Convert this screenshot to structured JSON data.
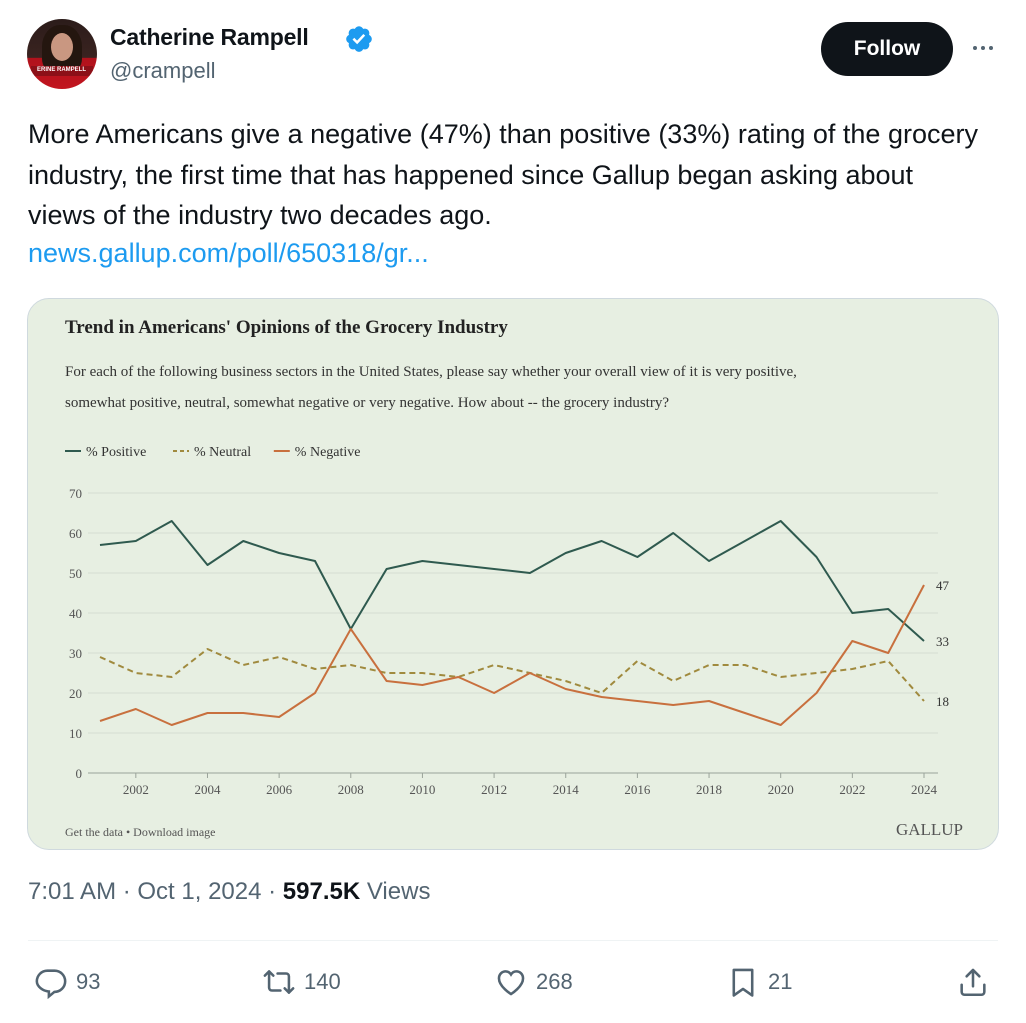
{
  "user": {
    "name": "Catherine Rampell",
    "handle": "@crampell",
    "avatar_caption": "ERINE RAMPELL"
  },
  "follow_label": "Follow",
  "tweet": {
    "text": "More Americans give a negative (47%) than positive (33%) rating of the grocery industry, the first time that has happened since Gallup began asking about views of the industry two decades ago.",
    "link": "news.gallup.com/poll/650318/gr..."
  },
  "card": {
    "footer_left": "Get the data • Download image",
    "brand": "GALLUP"
  },
  "chart_data": {
    "type": "line",
    "title": "Trend in Americans' Opinions of the Grocery Industry",
    "subtitle_line1": "For each of the following business sectors in the United States, please say whether your overall view of it is very positive,",
    "subtitle_line2": "somewhat positive, neutral, somewhat negative or very negative. How about -- the grocery industry?",
    "x": [
      2001,
      2002,
      2003,
      2004,
      2005,
      2006,
      2007,
      2008,
      2009,
      2010,
      2011,
      2012,
      2013,
      2014,
      2015,
      2016,
      2017,
      2018,
      2019,
      2020,
      2021,
      2022,
      2023,
      2024
    ],
    "x_ticks": [
      "2002",
      "2004",
      "2006",
      "2008",
      "2010",
      "2012",
      "2014",
      "2016",
      "2018",
      "2020",
      "2022",
      "2024"
    ],
    "y_ticks": [
      "0",
      "10",
      "20",
      "30",
      "40",
      "50",
      "60",
      "70"
    ],
    "ylim": [
      0,
      70
    ],
    "grid": true,
    "legend_position": "top-left",
    "series": [
      {
        "name": "% Positive",
        "color": "#2f5a4f",
        "dash": "solid",
        "values": [
          57,
          58,
          63,
          52,
          58,
          55,
          53,
          36,
          51,
          53,
          52,
          51,
          50,
          55,
          58,
          54,
          60,
          53,
          58,
          63,
          54,
          40,
          41,
          33
        ],
        "end_label": "33"
      },
      {
        "name": "% Neutral",
        "color": "#a08a3e",
        "dash": "dashed",
        "values": [
          29,
          25,
          24,
          31,
          27,
          29,
          26,
          27,
          25,
          25,
          24,
          27,
          25,
          23,
          20,
          28,
          23,
          27,
          27,
          24,
          25,
          26,
          28,
          18
        ],
        "end_label": "18"
      },
      {
        "name": "% Negative",
        "color": "#c8703e",
        "dash": "solid",
        "values": [
          13,
          16,
          12,
          15,
          15,
          14,
          20,
          36,
          23,
          22,
          24,
          20,
          25,
          21,
          19,
          18,
          17,
          18,
          15,
          12,
          20,
          33,
          30,
          47
        ],
        "end_label": "47"
      }
    ]
  },
  "meta": {
    "time": "7:01 AM · Oct 1, 2024 · ",
    "views_count": "597.5K",
    "views_label": " Views"
  },
  "actions": {
    "replies": "93",
    "reposts": "140",
    "likes": "268",
    "bookmarks": "21"
  }
}
